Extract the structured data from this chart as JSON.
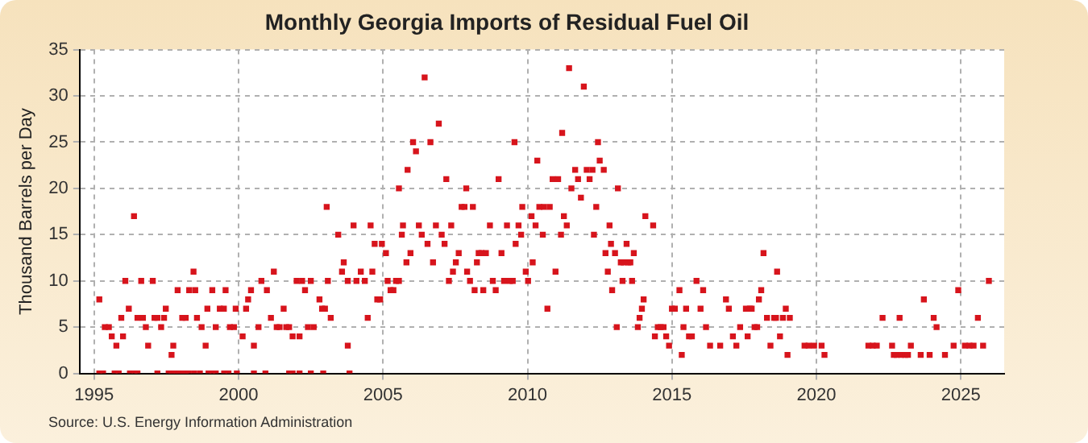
{
  "chart_data": {
    "type": "scatter",
    "title": "Monthly Georgia Imports of Residual Fuel Oil",
    "ylabel": "Thousand Barrels per Day",
    "annotations": [
      "Source: U.S. Energy Information Administration"
    ],
    "xlim": [
      1994.5,
      2026.5
    ],
    "xticks": [
      1995,
      2000,
      2005,
      2010,
      2015,
      2020,
      2025
    ],
    "ylim": [
      0,
      35
    ],
    "yticks": [
      0,
      5,
      10,
      15,
      20,
      25,
      30,
      35
    ],
    "grid": true,
    "marker": "square",
    "legend": false,
    "series": [
      {
        "color": "#d7141c",
        "x": [
          1995.18,
          1995.31,
          1995.71,
          1995.85,
          1996.24,
          1996.4,
          1996.5,
          1997.19,
          1997.58,
          1997.68,
          1997.78,
          1997.87,
          1997.97,
          1998.07,
          1998.17,
          1998.27,
          1998.46,
          1998.66,
          1998.96,
          1999.09,
          1999.21,
          1999.5,
          1999.65,
          1999.94,
          2000.53,
          2000.93,
          2001.75,
          2001.87,
          2002.11,
          2002.5,
          2002.93,
          2003.84,
          1995.18,
          1995.37,
          1995.51,
          1995.61,
          1995.77,
          1996.0,
          1995.94,
          1996.08,
          1996.2,
          1996.38,
          1996.5,
          1996.63,
          1996.69,
          1996.79,
          1996.87,
          1997.03,
          1997.09,
          1997.19,
          1997.32,
          1997.42,
          1997.48,
          1997.68,
          1997.74,
          1997.89,
          1998.05,
          1998.17,
          1998.29,
          1998.44,
          1998.5,
          1998.56,
          1998.72,
          1998.86,
          1998.92,
          1999.09,
          1999.21,
          1999.35,
          1999.49,
          1999.55,
          1999.7,
          1999.84,
          1999.9,
          2000.14,
          2000.26,
          2000.33,
          2000.43,
          2000.53,
          2000.69,
          2000.79,
          2000.98,
          2001.12,
          2001.22,
          2001.32,
          2001.42,
          2001.56,
          2001.65,
          2001.75,
          2001.87,
          2002.01,
          2002.11,
          2002.2,
          2002.3,
          2002.4,
          2002.5,
          2002.6,
          2002.8,
          2002.89,
          2002.99,
          2003.05,
          2003.09,
          2003.19,
          2003.45,
          2003.64,
          2003.58,
          2003.78,
          2003.78,
          2003.98,
          2004.08,
          2004.23,
          2004.37,
          2004.47,
          2004.57,
          2004.63,
          2004.71,
          2004.8,
          2004.9,
          2004.96,
          2005.1,
          2005.16,
          2005.26,
          2005.36,
          2005.45,
          2005.55,
          2005.65,
          2005.55,
          2005.69,
          2005.81,
          2005.85,
          2005.95,
          2006.04,
          2006.14,
          2006.24,
          2006.34,
          2006.44,
          2006.54,
          2006.64,
          2006.73,
          2006.83,
          2006.93,
          2007.03,
          2007.13,
          2007.19,
          2007.28,
          2007.36,
          2007.42,
          2007.52,
          2007.62,
          2007.72,
          2007.82,
          2007.88,
          2007.91,
          2008.01,
          2008.11,
          2008.17,
          2008.25,
          2008.31,
          2008.41,
          2008.47,
          2008.56,
          2008.7,
          2008.8,
          2008.9,
          2009.0,
          2009.1,
          2009.19,
          2009.29,
          2009.39,
          2009.49,
          2009.55,
          2009.59,
          2009.69,
          2009.78,
          2009.82,
          2009.94,
          2010.02,
          2010.14,
          2010.18,
          2010.28,
          2010.34,
          2010.41,
          2010.53,
          2010.57,
          2010.69,
          2010.77,
          2010.87,
          2010.97,
          2011.06,
          2011.16,
          2011.2,
          2011.26,
          2011.36,
          2011.44,
          2011.52,
          2011.65,
          2011.75,
          2011.85,
          2011.95,
          2012.05,
          2012.15,
          2012.25,
          2012.3,
          2012.38,
          2012.44,
          2012.5,
          2012.64,
          2012.7,
          2012.78,
          2012.84,
          2012.89,
          2012.93,
          2013.03,
          2013.09,
          2013.13,
          2013.23,
          2013.29,
          2013.33,
          2013.43,
          2013.49,
          2013.56,
          2013.62,
          2013.68,
          2013.82,
          2013.88,
          2013.96,
          2014.02,
          2014.08,
          2014.35,
          2014.41,
          2014.51,
          2014.61,
          2014.71,
          2014.8,
          2014.9,
          2015.0,
          2015.1,
          2015.26,
          2015.34,
          2015.4,
          2015.49,
          2015.59,
          2015.69,
          2015.85,
          2015.99,
          2016.08,
          2016.18,
          2016.32,
          2016.67,
          2016.87,
          2016.97,
          2017.11,
          2017.23,
          2017.36,
          2017.56,
          2017.62,
          2017.7,
          2017.76,
          2017.86,
          2017.95,
          2018.01,
          2018.09,
          2018.17,
          2018.29,
          2018.41,
          2018.54,
          2018.6,
          2018.64,
          2018.74,
          2018.84,
          2018.94,
          2019.0,
          2019.08,
          2019.59,
          2019.73,
          2019.92,
          2020.18,
          2020.28,
          2021.8,
          2021.95,
          2022.09,
          2022.29,
          2022.62,
          2022.68,
          2022.78,
          2022.88,
          2022.94,
          2023.07,
          2023.17,
          2023.27,
          2023.61,
          2023.72,
          2023.92,
          2024.06,
          2024.16,
          2024.45,
          2024.75,
          2024.91,
          2025.14,
          2025.3,
          2025.44,
          2025.59,
          2025.77,
          2025.97
        ],
        "values": [
          0,
          0,
          0,
          0,
          0,
          0,
          0,
          0,
          0,
          0,
          0,
          0,
          0,
          0,
          0,
          0,
          0,
          0,
          0,
          0,
          0,
          0,
          0,
          0,
          0,
          0,
          0,
          0,
          0,
          0,
          0,
          0,
          8,
          5,
          5,
          4,
          3,
          4,
          6,
          10,
          7,
          17,
          6,
          10,
          6,
          5,
          3,
          10,
          6,
          6,
          5,
          6,
          7,
          2,
          3,
          9,
          6,
          6,
          9,
          11,
          9,
          6,
          5,
          3,
          7,
          9,
          5,
          7,
          7,
          9,
          5,
          5,
          7,
          4,
          7,
          8,
          9,
          3,
          5,
          10,
          9,
          6,
          11,
          5,
          5,
          7,
          5,
          5,
          4,
          10,
          4,
          10,
          9,
          5,
          10,
          5,
          8,
          7,
          7,
          18,
          10,
          6,
          15,
          12,
          11,
          10,
          3,
          16,
          10,
          11,
          10,
          6,
          16,
          11,
          14,
          8,
          8,
          14,
          13,
          10,
          9,
          9,
          10,
          10,
          15,
          20,
          16,
          12,
          22,
          13,
          25,
          24,
          16,
          15,
          32,
          14,
          25,
          12,
          16,
          27,
          15,
          14,
          21,
          10,
          16,
          11,
          12,
          13,
          18,
          18,
          20,
          11,
          10,
          18,
          9,
          12,
          13,
          13,
          9,
          13,
          16,
          10,
          9,
          21,
          13,
          10,
          16,
          10,
          10,
          25,
          14,
          16,
          15,
          18,
          11,
          10,
          17,
          12,
          16,
          23,
          18,
          15,
          18,
          7,
          18,
          21,
          11,
          21,
          15,
          26,
          17,
          16,
          33,
          20,
          22,
          21,
          19,
          31,
          22,
          21,
          22,
          15,
          18,
          25,
          23,
          22,
          13,
          11,
          16,
          14,
          9,
          13,
          5,
          20,
          12,
          10,
          12,
          14,
          12,
          12,
          10,
          13,
          5,
          6,
          7,
          8,
          17,
          16,
          4,
          5,
          5,
          5,
          4,
          3,
          7,
          7,
          9,
          2,
          5,
          7,
          4,
          4,
          10,
          7,
          9,
          5,
          3,
          3,
          8,
          7,
          4,
          3,
          5,
          7,
          4,
          7,
          7,
          5,
          5,
          8,
          9,
          13,
          6,
          3,
          6,
          6,
          11,
          4,
          6,
          7,
          2,
          6,
          3,
          3,
          3,
          3,
          2,
          3,
          3,
          3,
          6,
          3,
          2,
          2,
          6,
          2,
          2,
          2,
          3,
          2,
          8,
          2,
          6,
          5,
          2,
          3,
          9,
          3,
          3,
          3,
          6,
          3,
          10
        ]
      }
    ]
  }
}
